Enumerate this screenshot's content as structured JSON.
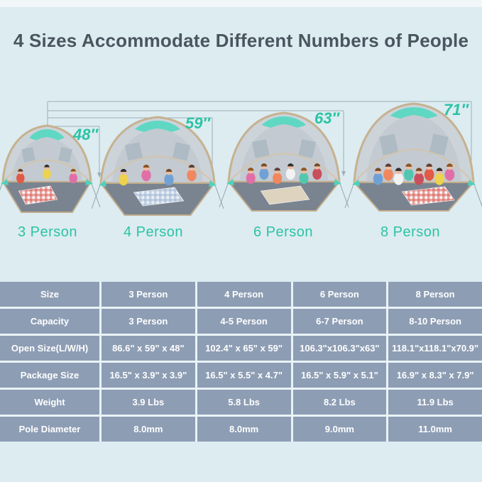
{
  "title": "4 Sizes Accommodate Different Numbers of People",
  "tents": [
    {
      "label": "3 Person",
      "height": "48″"
    },
    {
      "label": "4 Person",
      "height": "59″"
    },
    {
      "label": "6 Person",
      "height": "63″"
    },
    {
      "label": "8 Person",
      "height": "71″"
    }
  ],
  "spec_table": {
    "rows": [
      {
        "header": "Size",
        "values": [
          "3 Person",
          "4 Person",
          "6 Person",
          "8 Person"
        ]
      },
      {
        "header": "Capacity",
        "values": [
          "3 Person",
          "4-5 Person",
          "6-7 Person",
          "8-10 Person"
        ]
      },
      {
        "header": "Open Size(L/W/H)",
        "values": [
          "86.6\" x 59\" x 48\"",
          "102.4\" x 65\" x 59\"",
          "106.3\"x106.3\"x63\"",
          "118.1\"x118.1\"x70.9\""
        ]
      },
      {
        "header": "Package Size",
        "values": [
          "16.5\" x 3.9\" x 3.9\"",
          "16.5\" x 5.5\" x 4.7\"",
          "16.5\" x 5.9\" x 5.1\"",
          "16.9\" x 8.3\" x 7.9\""
        ]
      },
      {
        "header": "Weight",
        "values": [
          "3.9 Lbs",
          "5.8 Lbs",
          "8.2 Lbs",
          "11.9 Lbs"
        ]
      },
      {
        "header": "Pole Diameter",
        "values": [
          "8.0mm",
          "8.0mm",
          "9.0mm",
          "11.0mm"
        ]
      }
    ]
  },
  "colors": {
    "background": "#dcecf1",
    "accent_teal": "#2cc3a5",
    "title_text": "#4b555f",
    "table_cell": "#8d9db4",
    "table_text": "#ffffff",
    "tent_canopy": "#5ed8c3"
  }
}
